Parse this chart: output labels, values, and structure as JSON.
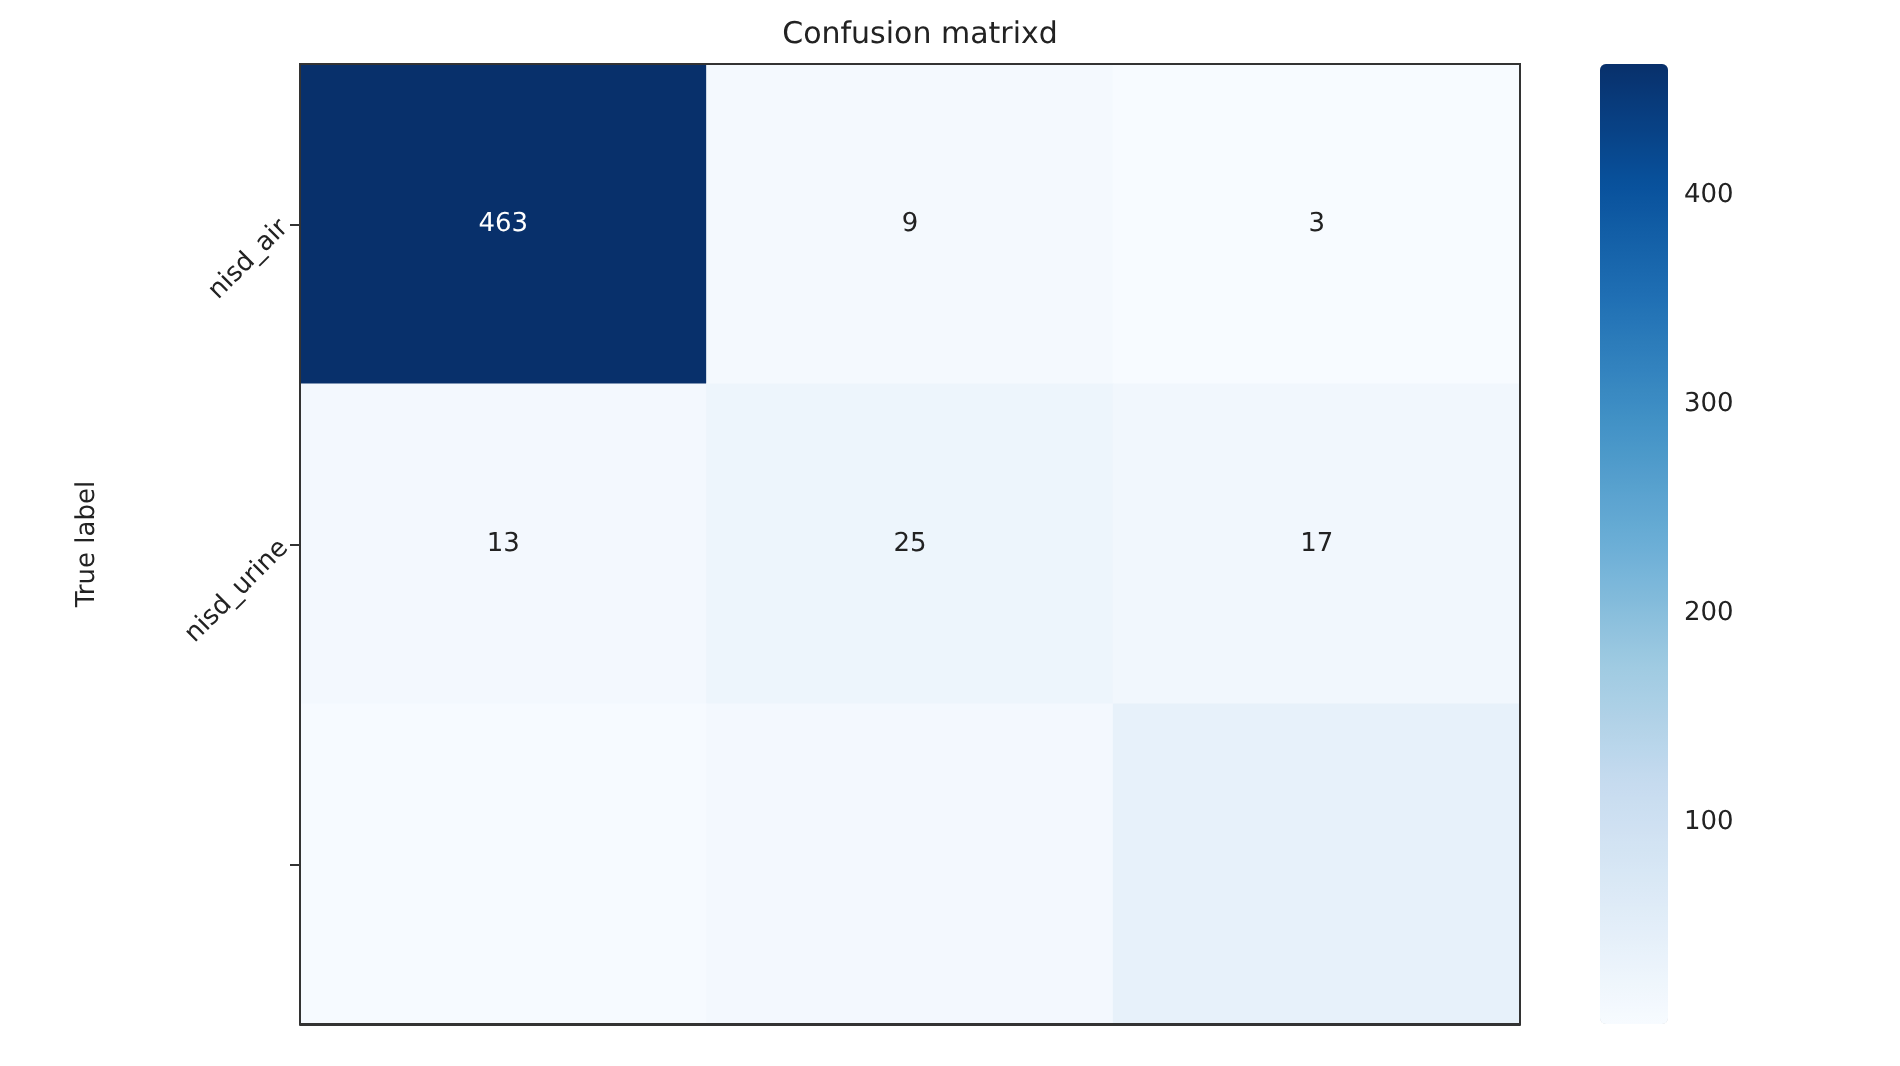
{
  "chart_data": {
    "type": "heatmap",
    "title": "Confusion matrixd",
    "ylabel": "True label",
    "categories": [
      null,
      null,
      null
    ],
    "y_categories": [
      "nisd_air",
      "nisd_urine",
      null
    ],
    "cells": [
      [
        463,
        9,
        3
      ],
      [
        13,
        25,
        17
      ],
      [
        5,
        12,
        40
      ]
    ],
    "cell_labels": [
      [
        "463",
        "9",
        "3"
      ],
      [
        "13",
        "25",
        "17"
      ],
      [
        null,
        null,
        null
      ]
    ],
    "clim": [
      3,
      463
    ],
    "cticks": [
      100,
      200,
      300,
      400
    ],
    "tick_labels": "y"
  }
}
